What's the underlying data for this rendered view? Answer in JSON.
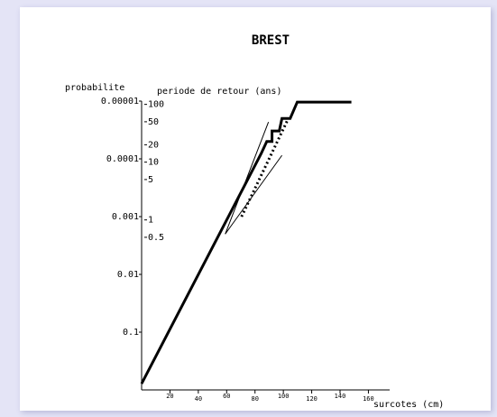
{
  "chart_data": {
    "type": "line",
    "title": "BREST",
    "ylabel": "probabilite",
    "y2label": "periode de retour (ans)",
    "xlabel": "surcotes (cm)",
    "xlim": [
      0,
      175
    ],
    "xticks": [
      20,
      40,
      60,
      80,
      100,
      120,
      140,
      160
    ],
    "ylim": [
      1,
      1e-05
    ],
    "log_y": true,
    "yticks": [
      {
        "value": 1e-05,
        "label": "0.00001"
      },
      0.0001,
      0.001,
      0.01,
      0.1
    ],
    "y2lim": [
      0.00114,
      114
    ],
    "log_y2": true,
    "y2ticks": [
      100,
      50,
      20,
      10,
      5,
      1,
      0.5
    ],
    "series": [
      {
        "color": "#000000",
        "width": 3,
        "dash": "solid",
        "x": [
          0,
          84.4,
          88.3,
          92,
          92,
          97.1,
          99,
          104.8,
          109.8,
          148
        ],
        "values": [
          0.78,
          8.05e-05,
          5e-05,
          5e-05,
          3.3e-05,
          3.3e-05,
          2e-05,
          2e-05,
          1.04e-05,
          1.04e-05
        ]
      },
      {
        "color": "#000000",
        "width": 3,
        "dash": "dotted",
        "x": [
          70.5,
          103.5
        ],
        "values": [
          0.001,
          2e-05
        ]
      },
      {
        "color": "#000000",
        "width": 1,
        "dash": "solid",
        "x": [
          59,
          99
        ],
        "values": [
          0.002,
          8.7e-05
        ]
      },
      {
        "color": "#000000",
        "width": 1,
        "dash": "solid",
        "x": [
          59,
          89.5
        ],
        "values": [
          0.002,
          2.3e-05
        ]
      }
    ]
  }
}
